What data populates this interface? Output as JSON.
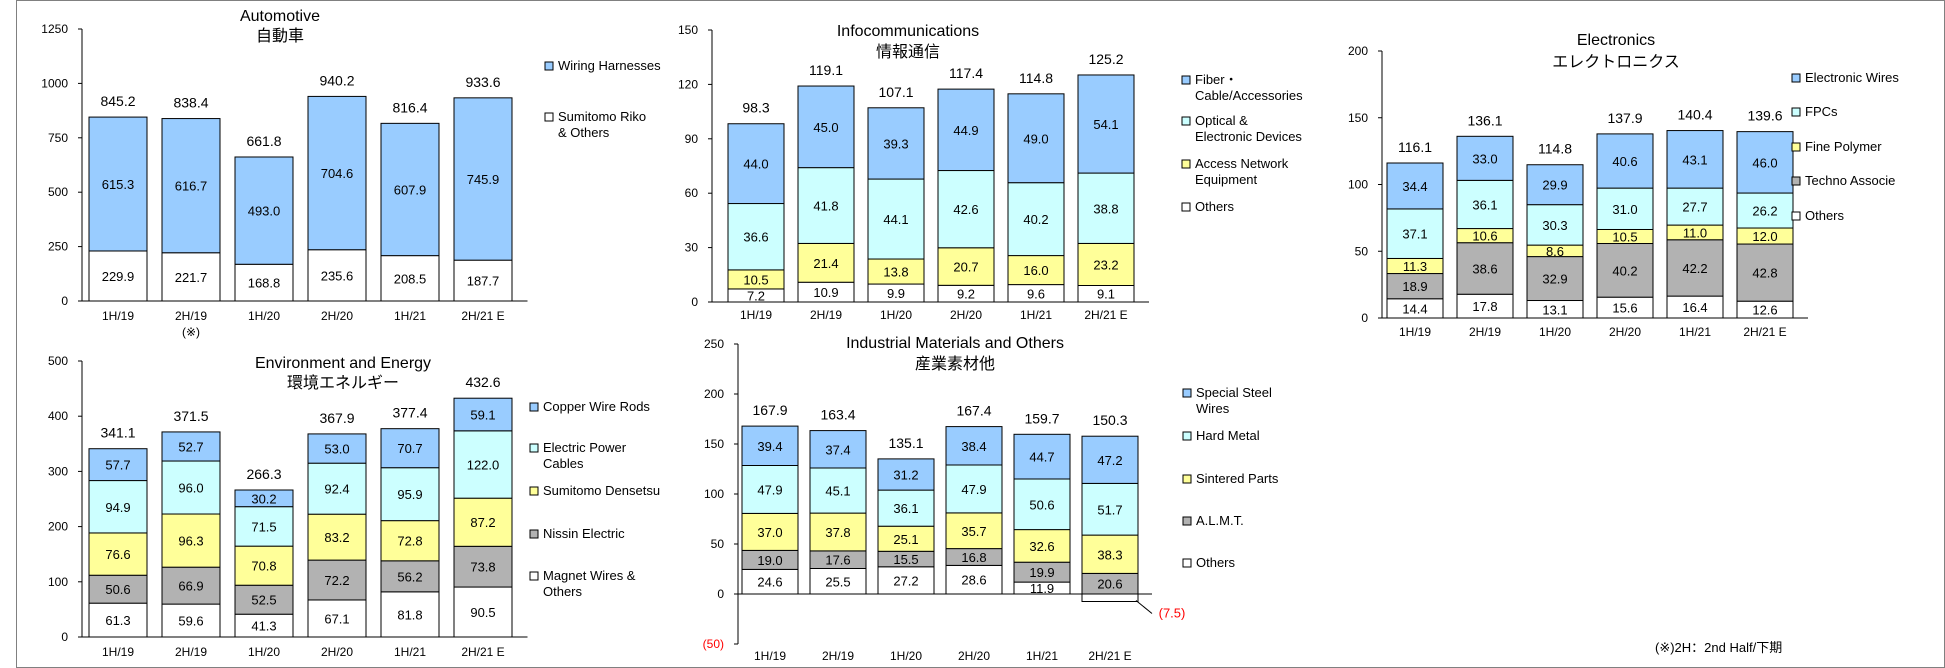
{
  "footnote": "(※)2H：2nd Half/下期",
  "categories": [
    "1H/19",
    "2H/19",
    "1H/20",
    "2H/20",
    "1H/21",
    "2H/21 E"
  ],
  "category_marks": {
    "2H/19": "(※)"
  },
  "colors": {
    "blue": "#99ccff",
    "cyan": "#ccffff",
    "yellow": "#ffff99",
    "gray": "#b2b2b2",
    "white": "#ffffff",
    "negative_label": "#ff0000"
  },
  "chart_data": [
    {
      "type": "bar",
      "stacked": true,
      "title": "Automotive",
      "subtitle": "自動車",
      "ylim": [
        0,
        1250
      ],
      "yticks": [
        0,
        250,
        500,
        750,
        1000,
        1250
      ],
      "totals": [
        "845.2",
        "838.4",
        "661.8",
        "940.2",
        "816.4",
        "933.6"
      ],
      "series": [
        {
          "name": "Sumitomo Riko & Others",
          "color": "white",
          "values": [
            229.9,
            221.7,
            168.8,
            235.6,
            208.5,
            187.7
          ]
        },
        {
          "name": "Wiring Harnesses",
          "color": "blue",
          "values": [
            615.3,
            616.7,
            493.0,
            704.6,
            607.9,
            745.9
          ]
        }
      ]
    },
    {
      "type": "bar",
      "stacked": true,
      "title": "Infocommunications",
      "subtitle": "情報通信",
      "ylim": [
        0,
        150
      ],
      "yticks": [
        0,
        30,
        60,
        90,
        120,
        150
      ],
      "totals": [
        "98.3",
        "119.1",
        "107.1",
        "117.4",
        "114.8",
        "125.2"
      ],
      "series": [
        {
          "name": "Others",
          "color": "white",
          "values": [
            7.2,
            10.9,
            9.9,
            9.2,
            9.6,
            9.1
          ]
        },
        {
          "name": "Access Network Equipment",
          "color": "yellow",
          "values": [
            10.5,
            21.4,
            13.8,
            20.7,
            16.0,
            23.2
          ]
        },
        {
          "name": "Optical & Electronic Devices",
          "color": "cyan",
          "values": [
            36.6,
            41.8,
            44.1,
            42.6,
            40.2,
            38.8
          ]
        },
        {
          "name": "Fiber・Cable/Accessories",
          "color": "blue",
          "values": [
            44.0,
            45.0,
            39.3,
            44.9,
            49.0,
            54.1
          ]
        }
      ]
    },
    {
      "type": "bar",
      "stacked": true,
      "title": "Electronics",
      "subtitle": "エレクトロニクス",
      "ylim": [
        0,
        200
      ],
      "yticks": [
        0,
        50,
        100,
        150,
        200
      ],
      "totals": [
        "116.1",
        "136.1",
        "114.8",
        "137.9",
        "140.4",
        "139.6"
      ],
      "series": [
        {
          "name": "Others",
          "color": "white",
          "values": [
            14.4,
            17.8,
            13.1,
            15.6,
            16.4,
            12.6
          ]
        },
        {
          "name": "Techno Associe",
          "color": "gray",
          "values": [
            18.9,
            38.6,
            32.9,
            40.2,
            42.2,
            42.8
          ]
        },
        {
          "name": "Fine Polymer",
          "color": "yellow",
          "values": [
            11.3,
            10.6,
            8.6,
            10.5,
            11.0,
            12.0
          ]
        },
        {
          "name": "FPCs",
          "color": "cyan",
          "values": [
            37.1,
            36.1,
            30.3,
            31.0,
            27.7,
            26.2
          ]
        },
        {
          "name": "Electronic Wires",
          "color": "blue",
          "values": [
            34.4,
            33.0,
            29.9,
            40.6,
            43.1,
            46.0
          ]
        }
      ]
    },
    {
      "type": "bar",
      "stacked": true,
      "title": "Environment and Energy",
      "subtitle": "環境エネルギー",
      "ylim": [
        0,
        500
      ],
      "yticks": [
        0,
        100,
        200,
        300,
        400,
        500
      ],
      "totals": [
        "341.1",
        "371.5",
        "266.3",
        "367.9",
        "377.4",
        "432.6"
      ],
      "series": [
        {
          "name": "Magnet Wires & Others",
          "color": "white",
          "values": [
            61.3,
            59.6,
            41.3,
            67.1,
            81.8,
            90.5
          ]
        },
        {
          "name": "Nissin Electric",
          "color": "gray",
          "values": [
            50.6,
            66.9,
            52.5,
            72.2,
            56.2,
            73.8
          ]
        },
        {
          "name": "Sumitomo Densetsu",
          "color": "yellow",
          "values": [
            76.6,
            96.3,
            70.8,
            83.2,
            72.8,
            87.2
          ]
        },
        {
          "name": "Electric Power Cables",
          "color": "cyan",
          "values": [
            94.9,
            96.0,
            71.5,
            92.4,
            95.9,
            122.0
          ]
        },
        {
          "name": "Copper Wire Rods",
          "color": "blue",
          "values": [
            57.7,
            52.7,
            30.2,
            53.0,
            70.7,
            59.1
          ]
        }
      ]
    },
    {
      "type": "bar",
      "stacked": true,
      "title": "Industrial Materials and Others",
      "subtitle": "産業素材他",
      "ylim": [
        -50,
        250
      ],
      "yticks": [
        -50,
        0,
        50,
        100,
        150,
        200,
        250
      ],
      "ytick_labels": [
        "(50)",
        "0",
        "50",
        "100",
        "150",
        "200",
        "250"
      ],
      "totals": [
        "167.9",
        "163.4",
        "135.1",
        "167.4",
        "159.7",
        "150.3"
      ],
      "series": [
        {
          "name": "Others",
          "color": "white",
          "values": [
            24.6,
            25.5,
            27.2,
            28.6,
            11.9,
            -7.5
          ],
          "value_labels": [
            "24.6",
            "25.5",
            "27.2",
            "28.6",
            "11.9",
            "(7.5)"
          ]
        },
        {
          "name": "A.L.M.T.",
          "color": "gray",
          "values": [
            19.0,
            17.6,
            15.5,
            16.8,
            19.9,
            20.6
          ]
        },
        {
          "name": "Sintered Parts",
          "color": "yellow",
          "values": [
            37.0,
            37.8,
            25.1,
            35.7,
            32.6,
            38.3
          ]
        },
        {
          "name": "Hard Metal",
          "color": "cyan",
          "values": [
            47.9,
            45.1,
            36.1,
            47.9,
            50.6,
            51.7
          ]
        },
        {
          "name": "Special Steel Wires",
          "color": "blue",
          "values": [
            39.4,
            37.4,
            31.2,
            38.4,
            44.7,
            47.2
          ]
        }
      ]
    }
  ]
}
